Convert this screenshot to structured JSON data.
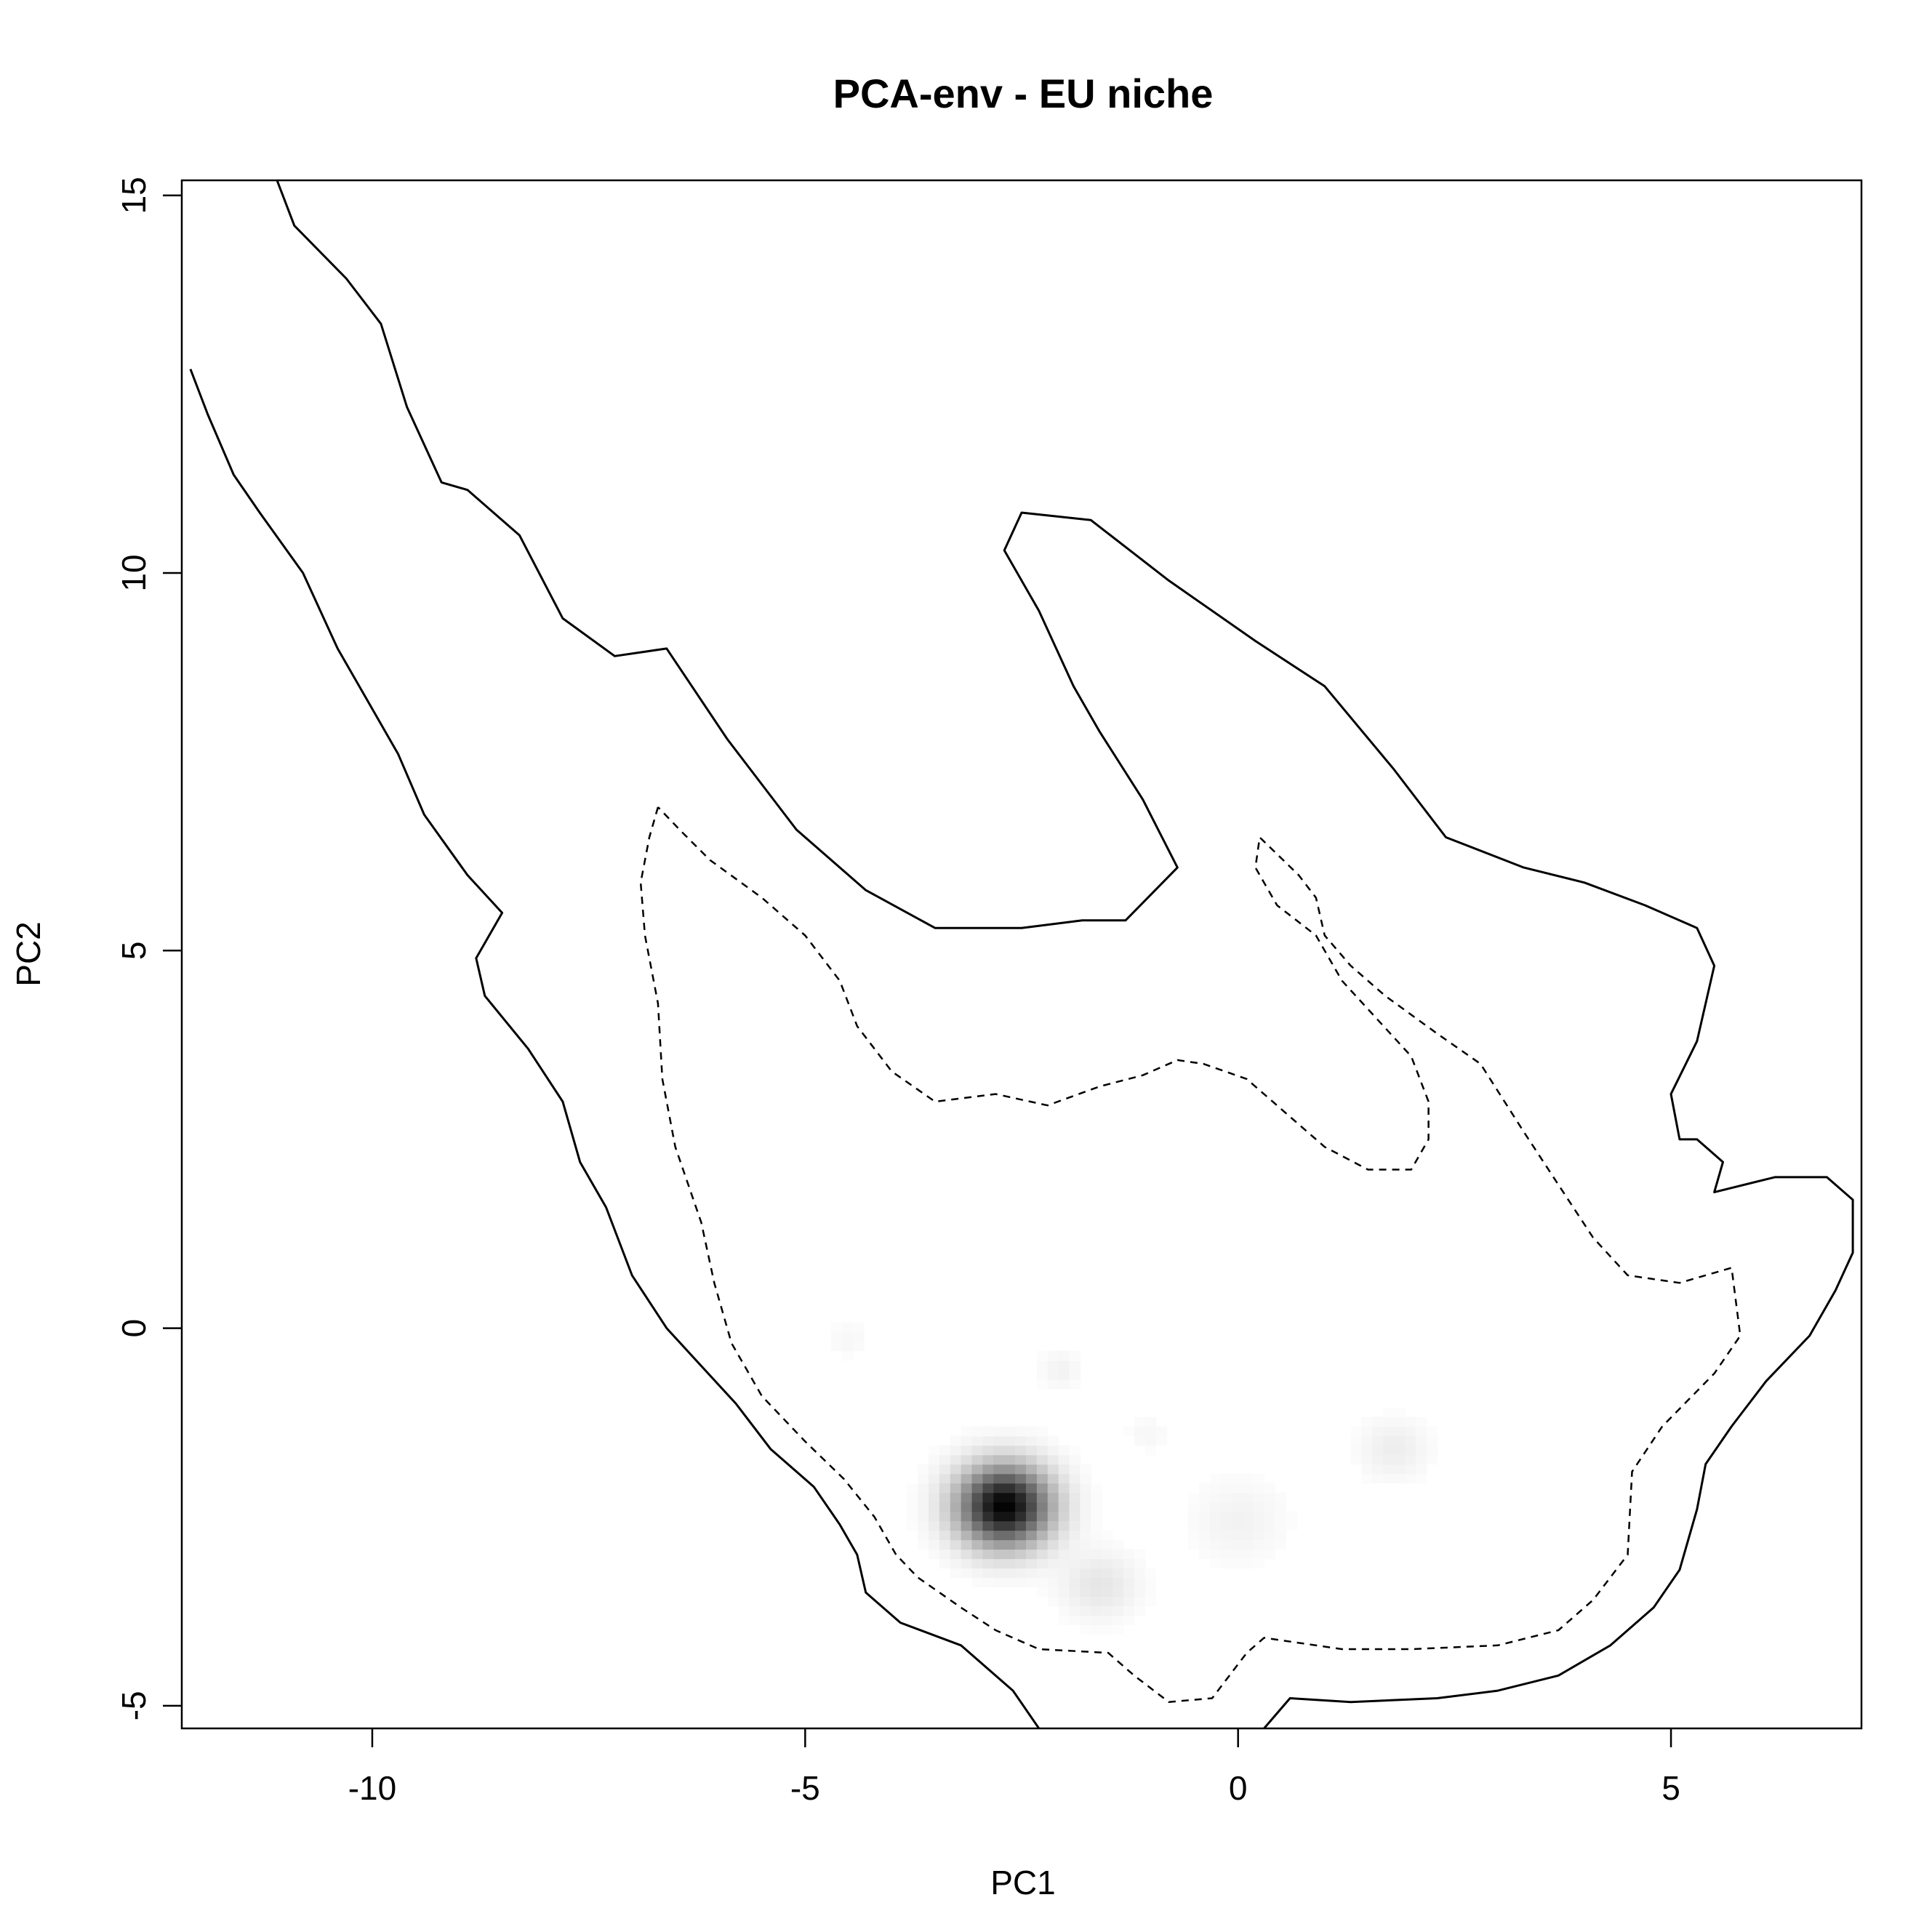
{
  "chart_data": {
    "type": "heatmap",
    "title": "PCA-env - EU niche",
    "xlabel": "PC1",
    "ylabel": "PC2",
    "xlim": [
      -12.2,
      7.2
    ],
    "ylim": [
      -5.3,
      15.2
    ],
    "x_ticks": [
      -10,
      -5,
      0,
      5
    ],
    "y_ticks": [
      -5,
      0,
      5,
      10,
      15
    ],
    "grid": false,
    "legend": "none",
    "density_peaks": [
      {
        "x": -2.7,
        "y": -2.35,
        "intensity": 1.0,
        "spread": 0.55
      },
      {
        "x": -1.6,
        "y": -3.4,
        "intensity": 0.1,
        "spread": 0.45
      },
      {
        "x": 0.0,
        "y": -2.55,
        "intensity": 0.05,
        "spread": 0.55
      },
      {
        "x": 1.8,
        "y": -1.6,
        "intensity": 0.07,
        "spread": 0.4
      },
      {
        "x": -2.05,
        "y": -0.55,
        "intensity": 0.05,
        "spread": 0.25
      },
      {
        "x": -4.5,
        "y": -0.15,
        "intensity": 0.03,
        "spread": 0.25
      },
      {
        "x": -1.05,
        "y": -1.4,
        "intensity": 0.03,
        "spread": 0.25
      }
    ],
    "contours": [
      {
        "style": "solid",
        "points": [
          [
            -11.1,
            15.2
          ],
          [
            -10.9,
            14.6
          ],
          [
            -10.3,
            13.9
          ],
          [
            -9.9,
            13.3
          ],
          [
            -9.6,
            12.2
          ],
          [
            -9.2,
            11.2
          ],
          [
            -8.9,
            11.1
          ],
          [
            -8.3,
            10.5
          ],
          [
            -7.8,
            9.4
          ],
          [
            -7.2,
            8.9
          ],
          [
            -6.6,
            9.0
          ],
          [
            -5.9,
            7.8
          ],
          [
            -5.1,
            6.6
          ],
          [
            -4.3,
            5.8
          ],
          [
            -3.5,
            5.3
          ],
          [
            -2.5,
            5.3
          ],
          [
            -1.8,
            5.4
          ],
          [
            -1.3,
            5.4
          ],
          [
            -0.7,
            6.1
          ],
          [
            -1.1,
            7.0
          ],
          [
            -1.6,
            7.9
          ],
          [
            -1.9,
            8.5
          ],
          [
            -2.3,
            9.5
          ],
          [
            -2.7,
            10.3
          ],
          [
            -2.5,
            10.8
          ],
          [
            -1.7,
            10.7
          ],
          [
            -0.8,
            9.9
          ],
          [
            0.2,
            9.1
          ],
          [
            1.0,
            8.5
          ],
          [
            1.8,
            7.4
          ],
          [
            2.4,
            6.5
          ],
          [
            3.3,
            6.1
          ],
          [
            4.0,
            5.9
          ],
          [
            4.7,
            5.6
          ],
          [
            5.3,
            5.3
          ],
          [
            5.5,
            4.8
          ],
          [
            5.3,
            3.8
          ],
          [
            5.0,
            3.1
          ],
          [
            5.1,
            2.5
          ],
          [
            5.3,
            2.5
          ],
          [
            5.4,
            2.4
          ],
          [
            5.6,
            2.2
          ],
          [
            5.5,
            1.8
          ],
          [
            6.2,
            2.0
          ],
          [
            6.8,
            2.0
          ],
          [
            7.1,
            1.7
          ],
          [
            7.1,
            1.0
          ],
          [
            6.9,
            0.5
          ],
          [
            6.6,
            -0.1
          ],
          [
            6.1,
            -0.7
          ],
          [
            5.7,
            -1.3
          ],
          [
            5.4,
            -1.8
          ],
          [
            5.3,
            -2.4
          ],
          [
            5.1,
            -3.2
          ],
          [
            4.8,
            -3.7
          ],
          [
            4.3,
            -4.2
          ],
          [
            3.7,
            -4.6
          ],
          [
            3.0,
            -4.8
          ],
          [
            2.3,
            -4.9
          ],
          [
            1.3,
            -4.95
          ],
          [
            0.6,
            -4.9
          ],
          [
            0.3,
            -5.3
          ]
        ]
      },
      {
        "style": "solid",
        "points": [
          [
            -12.1,
            12.7
          ],
          [
            -11.9,
            12.1
          ],
          [
            -11.6,
            11.3
          ],
          [
            -11.3,
            10.8
          ],
          [
            -10.8,
            10.0
          ],
          [
            -10.4,
            9.0
          ],
          [
            -10.0,
            8.2
          ],
          [
            -9.7,
            7.6
          ],
          [
            -9.4,
            6.8
          ],
          [
            -8.9,
            6.0
          ],
          [
            -8.5,
            5.5
          ],
          [
            -8.8,
            4.9
          ],
          [
            -8.7,
            4.4
          ],
          [
            -8.2,
            3.7
          ],
          [
            -7.8,
            3.0
          ],
          [
            -7.6,
            2.2
          ],
          [
            -7.3,
            1.6
          ],
          [
            -7.0,
            0.7
          ],
          [
            -6.6,
            0.0
          ],
          [
            -6.2,
            -0.5
          ],
          [
            -5.8,
            -1.0
          ],
          [
            -5.4,
            -1.6
          ],
          [
            -4.9,
            -2.1
          ],
          [
            -4.6,
            -2.6
          ],
          [
            -4.4,
            -3.0
          ],
          [
            -4.3,
            -3.5
          ],
          [
            -3.9,
            -3.9
          ],
          [
            -3.2,
            -4.2
          ],
          [
            -2.6,
            -4.8
          ],
          [
            -2.3,
            -5.3
          ]
        ]
      },
      {
        "style": "dashed",
        "points": [
          [
            -6.7,
            6.9
          ],
          [
            -6.8,
            6.5
          ],
          [
            -6.9,
            5.9
          ],
          [
            -6.85,
            5.2
          ],
          [
            -6.7,
            4.3
          ],
          [
            -6.65,
            3.3
          ],
          [
            -6.5,
            2.4
          ],
          [
            -6.2,
            1.4
          ],
          [
            -6.05,
            0.6
          ],
          [
            -5.85,
            -0.2
          ],
          [
            -5.5,
            -0.9
          ],
          [
            -5.0,
            -1.5
          ],
          [
            -4.55,
            -2.0
          ],
          [
            -4.2,
            -2.5
          ],
          [
            -3.95,
            -3.0
          ],
          [
            -3.7,
            -3.3
          ],
          [
            -3.2,
            -3.7
          ],
          [
            -2.8,
            -4.0
          ],
          [
            -2.3,
            -4.25
          ],
          [
            -1.5,
            -4.3
          ],
          [
            -1.2,
            -4.6
          ],
          [
            -0.8,
            -4.95
          ],
          [
            -0.3,
            -4.9
          ],
          [
            0.1,
            -4.3
          ],
          [
            0.3,
            -4.1
          ],
          [
            1.2,
            -4.25
          ],
          [
            2.0,
            -4.25
          ],
          [
            3.0,
            -4.2
          ],
          [
            3.7,
            -4.0
          ],
          [
            4.1,
            -3.6
          ],
          [
            4.5,
            -3.0
          ],
          [
            4.55,
            -1.9
          ],
          [
            4.9,
            -1.3
          ],
          [
            5.5,
            -0.6
          ],
          [
            5.8,
            -0.1
          ],
          [
            5.7,
            0.8
          ],
          [
            5.1,
            0.6
          ],
          [
            4.5,
            0.7
          ],
          [
            4.1,
            1.2
          ],
          [
            3.7,
            1.9
          ],
          [
            3.3,
            2.6
          ],
          [
            2.8,
            3.5
          ],
          [
            2.3,
            3.9
          ],
          [
            1.7,
            4.4
          ],
          [
            1.3,
            4.8
          ],
          [
            1.0,
            5.2
          ],
          [
            0.9,
            5.7
          ],
          [
            0.7,
            6.0
          ],
          [
            0.25,
            6.5
          ],
          [
            0.2,
            6.1
          ],
          [
            0.45,
            5.6
          ],
          [
            0.9,
            5.2
          ],
          [
            1.2,
            4.6
          ],
          [
            1.6,
            4.1
          ],
          [
            2.0,
            3.6
          ],
          [
            2.2,
            3.0
          ],
          [
            2.2,
            2.5
          ],
          [
            2.0,
            2.1
          ],
          [
            1.5,
            2.1
          ],
          [
            1.0,
            2.4
          ],
          [
            0.6,
            2.8
          ],
          [
            0.1,
            3.3
          ],
          [
            -0.4,
            3.5
          ],
          [
            -0.7,
            3.55
          ],
          [
            -1.1,
            3.35
          ],
          [
            -1.6,
            3.2
          ],
          [
            -2.2,
            2.95
          ],
          [
            -2.8,
            3.1
          ],
          [
            -3.5,
            3.0
          ],
          [
            -4.0,
            3.4
          ],
          [
            -4.4,
            4.0
          ],
          [
            -4.6,
            4.6
          ],
          [
            -5.0,
            5.2
          ],
          [
            -5.5,
            5.7
          ],
          [
            -6.1,
            6.2
          ],
          [
            -6.45,
            6.6
          ],
          [
            -6.7,
            6.9
          ]
        ]
      }
    ]
  }
}
